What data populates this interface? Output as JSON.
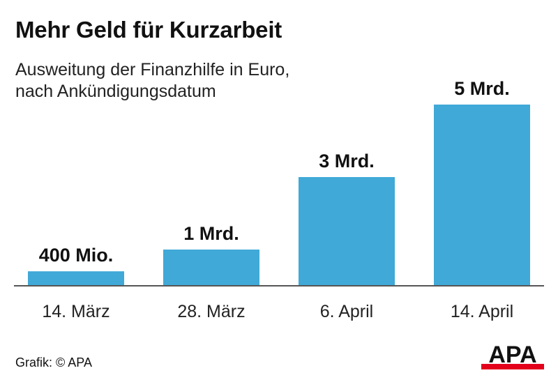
{
  "header": {
    "title": "Mehr Geld für Kurzarbeit",
    "subtitle_line1": "Ausweitung der Finanzhilfe in Euro,",
    "subtitle_line2": "nach Ankündigungsdatum"
  },
  "chart_data": {
    "type": "bar",
    "title": "Mehr Geld für Kurzarbeit",
    "subtitle": "Ausweitung der Finanzhilfe in Euro, nach Ankündigungsdatum",
    "categories": [
      "14. März",
      "28. März",
      "6. April",
      "14. April"
    ],
    "values": [
      400000000,
      1000000000,
      3000000000,
      5000000000
    ],
    "value_labels": [
      "400 Mio.",
      "1 Mrd.",
      "3 Mrd.",
      "5 Mrd."
    ],
    "xlabel": "",
    "ylabel": "",
    "ylim": [
      0,
      5000000000
    ],
    "grid": false,
    "bar_color": "#40a9d7",
    "axis_color": "#555555"
  },
  "footer": {
    "credit": "Grafik: © APA",
    "logo_text": "APA",
    "logo_colors": {
      "text": "#111111",
      "accent": "#e3001b"
    }
  }
}
